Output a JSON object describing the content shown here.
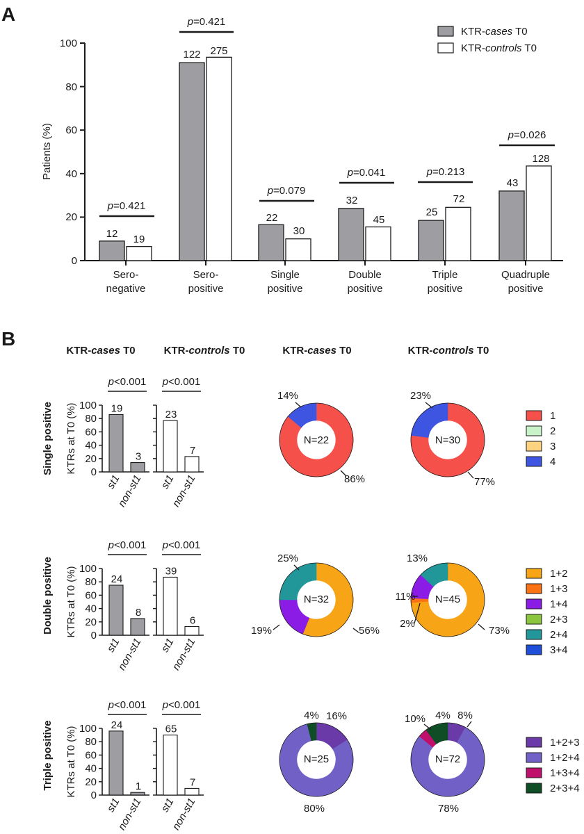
{
  "panel_a": {
    "panel_letter": "A",
    "y_axis_label": "Patients (%)",
    "y_ticks": [
      "0",
      "20",
      "40",
      "60",
      "80",
      "100"
    ],
    "legend": [
      {
        "prefix": "KTR-",
        "italic": "cases",
        "suffix": " T0",
        "fill": "#9d9da2"
      },
      {
        "prefix": "KTR-",
        "italic": "controls",
        "suffix": " T0",
        "fill": "#ffffff"
      }
    ],
    "groups": [
      {
        "label_1": "Sero-",
        "label_2": "negative",
        "p_prefix": "p",
        "p_value": "=0.421",
        "n_cases": "12",
        "n_controls": "19"
      },
      {
        "label_1": "Sero-",
        "label_2": "positive",
        "p_prefix": "p",
        "p_value": "=0.421",
        "n_cases": "122",
        "n_controls": "275"
      },
      {
        "label_1": "Single",
        "label_2": "positive",
        "p_prefix": "p",
        "p_value": "=0.079",
        "n_cases": "22",
        "n_controls": "30"
      },
      {
        "label_1": "Double",
        "label_2": "positive",
        "p_prefix": "p",
        "p_value": "=0.041",
        "n_cases": "32",
        "n_controls": "45"
      },
      {
        "label_1": "Triple",
        "label_2": "positive",
        "p_prefix": "p",
        "p_value": "=0.213",
        "n_cases": "25",
        "n_controls": "72"
      },
      {
        "label_1": "Quadruple",
        "label_2": "positive",
        "p_prefix": "p",
        "p_value": "=0.026",
        "n_cases": "43",
        "n_controls": "128"
      }
    ]
  },
  "panel_b": {
    "panel_letter": "B",
    "col_headers": [
      {
        "prefix": "KTR-",
        "italic": "cases",
        "suffix": " T0"
      },
      {
        "prefix": "KTR-",
        "italic": "controls",
        "suffix": " T0"
      },
      {
        "prefix": "KTR-",
        "italic": "cases",
        "suffix": " T0"
      },
      {
        "prefix": "KTR-",
        "italic": "controls",
        "suffix": " T0"
      }
    ],
    "y_axis_label": "KTRs at T0 (%)",
    "y_ticks": [
      "0",
      "20",
      "40",
      "60",
      "80",
      "100"
    ],
    "x_labels": [
      "st1",
      "non-st1"
    ],
    "rows": [
      {
        "row_label": "Single positive",
        "bars": [
          {
            "p_prefix": "p",
            "p_value": "<0.001",
            "n_st1": "19",
            "n_non": "3"
          },
          {
            "p_prefix": "p",
            "p_value": "<0.001",
            "n_st1": "23",
            "n_non": "7"
          }
        ],
        "donuts": [
          {
            "center": "N=22",
            "labels": [
              "14%",
              "86%"
            ]
          },
          {
            "center": "N=30",
            "labels": [
              "23%",
              "77%"
            ]
          }
        ],
        "legend": [
          {
            "label": "1",
            "color": "#f6504b"
          },
          {
            "label": "2",
            "color": "#c8f3c8"
          },
          {
            "label": "3",
            "color": "#ffd27f"
          },
          {
            "label": "4",
            "color": "#3d55e0"
          }
        ]
      },
      {
        "row_label": "Double positive",
        "bars": [
          {
            "p_prefix": "p",
            "p_value": "<0.001",
            "n_st1": "24",
            "n_non": "8"
          },
          {
            "p_prefix": "p",
            "p_value": "<0.001",
            "n_st1": "39",
            "n_non": "6"
          }
        ],
        "donuts": [
          {
            "center": "N=32",
            "labels": [
              "25%",
              "19%",
              "56%"
            ]
          },
          {
            "center": "N=45",
            "labels": [
              "13%",
              "11%",
              "2%",
              "73%"
            ]
          }
        ],
        "legend": [
          {
            "label": "1+2",
            "color": "#f7a416"
          },
          {
            "label": "1+3",
            "color": "#f97316"
          },
          {
            "label": "1+4",
            "color": "#8b1ce6"
          },
          {
            "label": "2+3",
            "color": "#8cc63f"
          },
          {
            "label": "2+4",
            "color": "#21979a"
          },
          {
            "label": "3+4",
            "color": "#1f4fd8"
          }
        ]
      },
      {
        "row_label": "Triple positive",
        "bars": [
          {
            "p_prefix": "p",
            "p_value": "<0.001",
            "n_st1": "24",
            "n_non": "1"
          },
          {
            "p_prefix": "p",
            "p_value": "<0.001",
            "n_st1": "65",
            "n_non": "7"
          }
        ],
        "donuts": [
          {
            "center": "N=25",
            "labels": [
              "4%",
              "16%",
              "80%"
            ]
          },
          {
            "center": "N=72",
            "labels": [
              "10%",
              "4%",
              "8%",
              "78%"
            ]
          }
        ],
        "legend": [
          {
            "label": "1+2+3",
            "color": "#6a3aa8"
          },
          {
            "label": "1+2+4",
            "color": "#7161c6"
          },
          {
            "label": "1+3+4",
            "color": "#c0106c"
          },
          {
            "label": "2+3+4",
            "color": "#0f4d26"
          }
        ]
      }
    ]
  },
  "chart_data": [
    {
      "type": "bar",
      "panel": "A",
      "categories": [
        "Sero-negative",
        "Sero-positive",
        "Single positive",
        "Double positive",
        "Triple positive",
        "Quadruple positive"
      ],
      "ylabel": "Patients (%)",
      "ylim": [
        0,
        100
      ],
      "grid": false,
      "legend_position": "top-right",
      "series": [
        {
          "name": "KTR-cases T0",
          "color": "#9d9da2",
          "values": [
            9,
            91,
            16.5,
            24,
            18.5,
            32
          ]
        },
        {
          "name": "KTR-controls T0",
          "color": "#ffffff",
          "values": [
            6.5,
            93.5,
            10,
            15.5,
            24.5,
            43.5
          ]
        }
      ]
    },
    {
      "type": "bar",
      "panel": "B",
      "row": "Single positive",
      "group": "KTR-cases T0",
      "categories": [
        "st1",
        "non-st1"
      ],
      "values": [
        86,
        14
      ],
      "ylim": [
        0,
        100
      ],
      "color": "#9d9da2"
    },
    {
      "type": "bar",
      "panel": "B",
      "row": "Single positive",
      "group": "KTR-controls T0",
      "categories": [
        "st1",
        "non-st1"
      ],
      "values": [
        77,
        23
      ],
      "ylim": [
        0,
        100
      ],
      "color": "#ffffff"
    },
    {
      "type": "bar",
      "panel": "B",
      "row": "Double positive",
      "group": "KTR-cases T0",
      "categories": [
        "st1",
        "non-st1"
      ],
      "values": [
        75,
        25
      ],
      "ylim": [
        0,
        100
      ],
      "color": "#9d9da2"
    },
    {
      "type": "bar",
      "panel": "B",
      "row": "Double positive",
      "group": "KTR-controls T0",
      "categories": [
        "st1",
        "non-st1"
      ],
      "values": [
        87,
        13
      ],
      "ylim": [
        0,
        100
      ],
      "color": "#ffffff"
    },
    {
      "type": "bar",
      "panel": "B",
      "row": "Triple positive",
      "group": "KTR-cases T0",
      "categories": [
        "st1",
        "non-st1"
      ],
      "values": [
        96,
        4
      ],
      "ylim": [
        0,
        100
      ],
      "color": "#9d9da2"
    },
    {
      "type": "bar",
      "panel": "B",
      "row": "Triple positive",
      "group": "KTR-controls T0",
      "categories": [
        "st1",
        "non-st1"
      ],
      "values": [
        90,
        10
      ],
      "ylim": [
        0,
        100
      ],
      "color": "#ffffff"
    },
    {
      "type": "pie",
      "panel": "B",
      "row": "Single positive",
      "group": "KTR-cases T0",
      "categories": [
        "1",
        "4"
      ],
      "values": [
        86,
        14
      ],
      "colors": [
        "#f6504b",
        "#3d55e0"
      ]
    },
    {
      "type": "pie",
      "panel": "B",
      "row": "Single positive",
      "group": "KTR-controls T0",
      "categories": [
        "1",
        "4"
      ],
      "values": [
        77,
        23
      ],
      "colors": [
        "#f6504b",
        "#3d55e0"
      ]
    },
    {
      "type": "pie",
      "panel": "B",
      "row": "Double positive",
      "group": "KTR-cases T0",
      "categories": [
        "1+2",
        "1+4",
        "2+4"
      ],
      "values": [
        56,
        19,
        25
      ],
      "colors": [
        "#f7a416",
        "#8b1ce6",
        "#21979a"
      ]
    },
    {
      "type": "pie",
      "panel": "B",
      "row": "Double positive",
      "group": "KTR-controls T0",
      "categories": [
        "1+2",
        "1+3",
        "1+4",
        "2+4"
      ],
      "values": [
        73,
        2,
        11,
        13
      ],
      "colors": [
        "#f7a416",
        "#f97316",
        "#8b1ce6",
        "#21979a"
      ]
    },
    {
      "type": "pie",
      "panel": "B",
      "row": "Triple positive",
      "group": "KTR-cases T0",
      "categories": [
        "1+2+3",
        "1+2+4",
        "2+3+4"
      ],
      "values": [
        16,
        80,
        4
      ],
      "colors": [
        "#6a3aa8",
        "#7161c6",
        "#0f4d26"
      ]
    },
    {
      "type": "pie",
      "panel": "B",
      "row": "Triple positive",
      "group": "KTR-controls T0",
      "categories": [
        "1+2+3",
        "1+2+4",
        "1+3+4",
        "2+3+4"
      ],
      "values": [
        8,
        78,
        4,
        10
      ],
      "colors": [
        "#6a3aa8",
        "#7161c6",
        "#c0106c",
        "#0f4d26"
      ]
    }
  ]
}
